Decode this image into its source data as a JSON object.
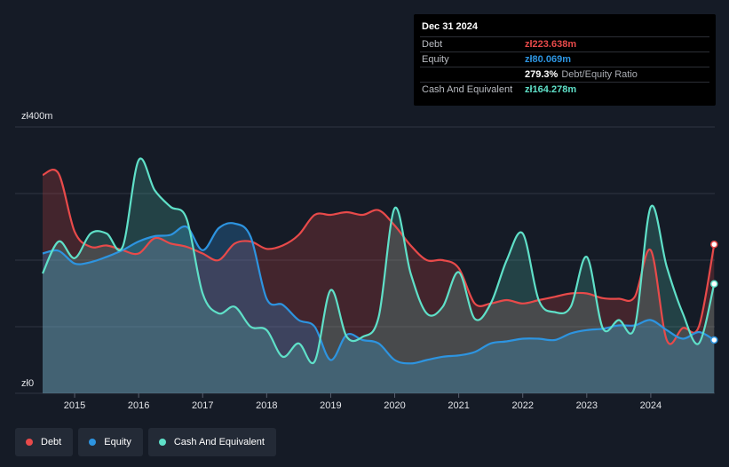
{
  "tooltip": {
    "date": "Dec 31 2024",
    "rows": [
      {
        "label": "Debt",
        "value": "zł223.638m",
        "color": "#e84a4a",
        "note": ""
      },
      {
        "label": "Equity",
        "value": "zł80.069m",
        "color": "#2d94e0",
        "note": ""
      },
      {
        "label": "",
        "value": "279.3%",
        "color": "#ffffff",
        "note": "Debt/Equity Ratio"
      },
      {
        "label": "Cash And Equivalent",
        "value": "zł164.278m",
        "color": "#5fe0c8",
        "note": ""
      }
    ]
  },
  "chart_data": {
    "type": "area",
    "x_range": [
      2014.5,
      2025.0
    ],
    "ylim": [
      0,
      400
    ],
    "y_ticks": [
      {
        "value": 400,
        "label": "zł400m"
      },
      {
        "value": 0,
        "label": "zł0"
      }
    ],
    "x_ticks": [
      "2015",
      "2016",
      "2017",
      "2018",
      "2019",
      "2020",
      "2021",
      "2022",
      "2023",
      "2024"
    ],
    "grid": true,
    "legend_position": "bottom-left",
    "series": [
      {
        "name": "Debt",
        "color": "#e84a4a",
        "points": [
          [
            2014.5,
            328
          ],
          [
            2014.75,
            330
          ],
          [
            2015.0,
            243
          ],
          [
            2015.25,
            220
          ],
          [
            2015.5,
            222
          ],
          [
            2015.75,
            215
          ],
          [
            2016.0,
            210
          ],
          [
            2016.25,
            233
          ],
          [
            2016.5,
            225
          ],
          [
            2016.75,
            220
          ],
          [
            2017.0,
            210
          ],
          [
            2017.25,
            200
          ],
          [
            2017.5,
            225
          ],
          [
            2017.75,
            228
          ],
          [
            2018.0,
            217
          ],
          [
            2018.25,
            222
          ],
          [
            2018.5,
            238
          ],
          [
            2018.75,
            268
          ],
          [
            2019.0,
            268
          ],
          [
            2019.25,
            272
          ],
          [
            2019.5,
            268
          ],
          [
            2019.75,
            275
          ],
          [
            2020.0,
            252
          ],
          [
            2020.25,
            222
          ],
          [
            2020.5,
            200
          ],
          [
            2020.75,
            200
          ],
          [
            2021.0,
            188
          ],
          [
            2021.25,
            135
          ],
          [
            2021.5,
            135
          ],
          [
            2021.75,
            140
          ],
          [
            2022.0,
            135
          ],
          [
            2022.25,
            140
          ],
          [
            2022.5,
            145
          ],
          [
            2022.75,
            150
          ],
          [
            2023.0,
            150
          ],
          [
            2023.25,
            143
          ],
          [
            2023.5,
            142
          ],
          [
            2023.75,
            145
          ],
          [
            2024.0,
            215
          ],
          [
            2024.25,
            80
          ],
          [
            2024.5,
            98
          ],
          [
            2024.75,
            100
          ],
          [
            2024.99,
            223.638
          ]
        ]
      },
      {
        "name": "Equity",
        "color": "#2d94e0",
        "points": [
          [
            2014.5,
            210
          ],
          [
            2014.75,
            214
          ],
          [
            2015.0,
            195
          ],
          [
            2015.25,
            197
          ],
          [
            2015.5,
            205
          ],
          [
            2015.75,
            215
          ],
          [
            2016.0,
            228
          ],
          [
            2016.25,
            236
          ],
          [
            2016.5,
            238
          ],
          [
            2016.75,
            250
          ],
          [
            2017.0,
            215
          ],
          [
            2017.25,
            248
          ],
          [
            2017.5,
            255
          ],
          [
            2017.75,
            235
          ],
          [
            2018.0,
            142
          ],
          [
            2018.25,
            133
          ],
          [
            2018.5,
            110
          ],
          [
            2018.75,
            100
          ],
          [
            2019.0,
            50
          ],
          [
            2019.25,
            88
          ],
          [
            2019.5,
            80
          ],
          [
            2019.75,
            75
          ],
          [
            2020.0,
            50
          ],
          [
            2020.25,
            45
          ],
          [
            2020.5,
            50
          ],
          [
            2020.75,
            55
          ],
          [
            2021.0,
            57
          ],
          [
            2021.25,
            62
          ],
          [
            2021.5,
            75
          ],
          [
            2021.75,
            78
          ],
          [
            2022.0,
            82
          ],
          [
            2022.25,
            82
          ],
          [
            2022.5,
            80
          ],
          [
            2022.75,
            90
          ],
          [
            2023.0,
            95
          ],
          [
            2023.25,
            97
          ],
          [
            2023.5,
            102
          ],
          [
            2023.75,
            102
          ],
          [
            2024.0,
            110
          ],
          [
            2024.25,
            95
          ],
          [
            2024.5,
            82
          ],
          [
            2024.75,
            92
          ],
          [
            2024.99,
            80.069
          ]
        ]
      },
      {
        "name": "Cash And Equivalent",
        "color": "#5fe0c8",
        "points": [
          [
            2014.5,
            180
          ],
          [
            2014.75,
            228
          ],
          [
            2015.0,
            203
          ],
          [
            2015.25,
            240
          ],
          [
            2015.5,
            240
          ],
          [
            2015.75,
            220
          ],
          [
            2016.0,
            350
          ],
          [
            2016.25,
            305
          ],
          [
            2016.5,
            280
          ],
          [
            2016.75,
            262
          ],
          [
            2017.0,
            150
          ],
          [
            2017.25,
            120
          ],
          [
            2017.5,
            130
          ],
          [
            2017.75,
            100
          ],
          [
            2018.0,
            95
          ],
          [
            2018.25,
            55
          ],
          [
            2018.5,
            75
          ],
          [
            2018.75,
            48
          ],
          [
            2019.0,
            155
          ],
          [
            2019.25,
            85
          ],
          [
            2019.5,
            85
          ],
          [
            2019.75,
            115
          ],
          [
            2020.0,
            278
          ],
          [
            2020.25,
            180
          ],
          [
            2020.5,
            120
          ],
          [
            2020.75,
            130
          ],
          [
            2021.0,
            182
          ],
          [
            2021.25,
            112
          ],
          [
            2021.5,
            135
          ],
          [
            2021.75,
            200
          ],
          [
            2022.0,
            240
          ],
          [
            2022.25,
            140
          ],
          [
            2022.5,
            122
          ],
          [
            2022.75,
            130
          ],
          [
            2023.0,
            205
          ],
          [
            2023.25,
            98
          ],
          [
            2023.5,
            110
          ],
          [
            2023.75,
            100
          ],
          [
            2024.0,
            280
          ],
          [
            2024.25,
            190
          ],
          [
            2024.5,
            120
          ],
          [
            2024.75,
            75
          ],
          [
            2024.99,
            164.278
          ]
        ]
      }
    ]
  },
  "legend": [
    {
      "label": "Debt",
      "color": "#e84a4a"
    },
    {
      "label": "Equity",
      "color": "#2d94e0"
    },
    {
      "label": "Cash And Equivalent",
      "color": "#5fe0c8"
    }
  ]
}
